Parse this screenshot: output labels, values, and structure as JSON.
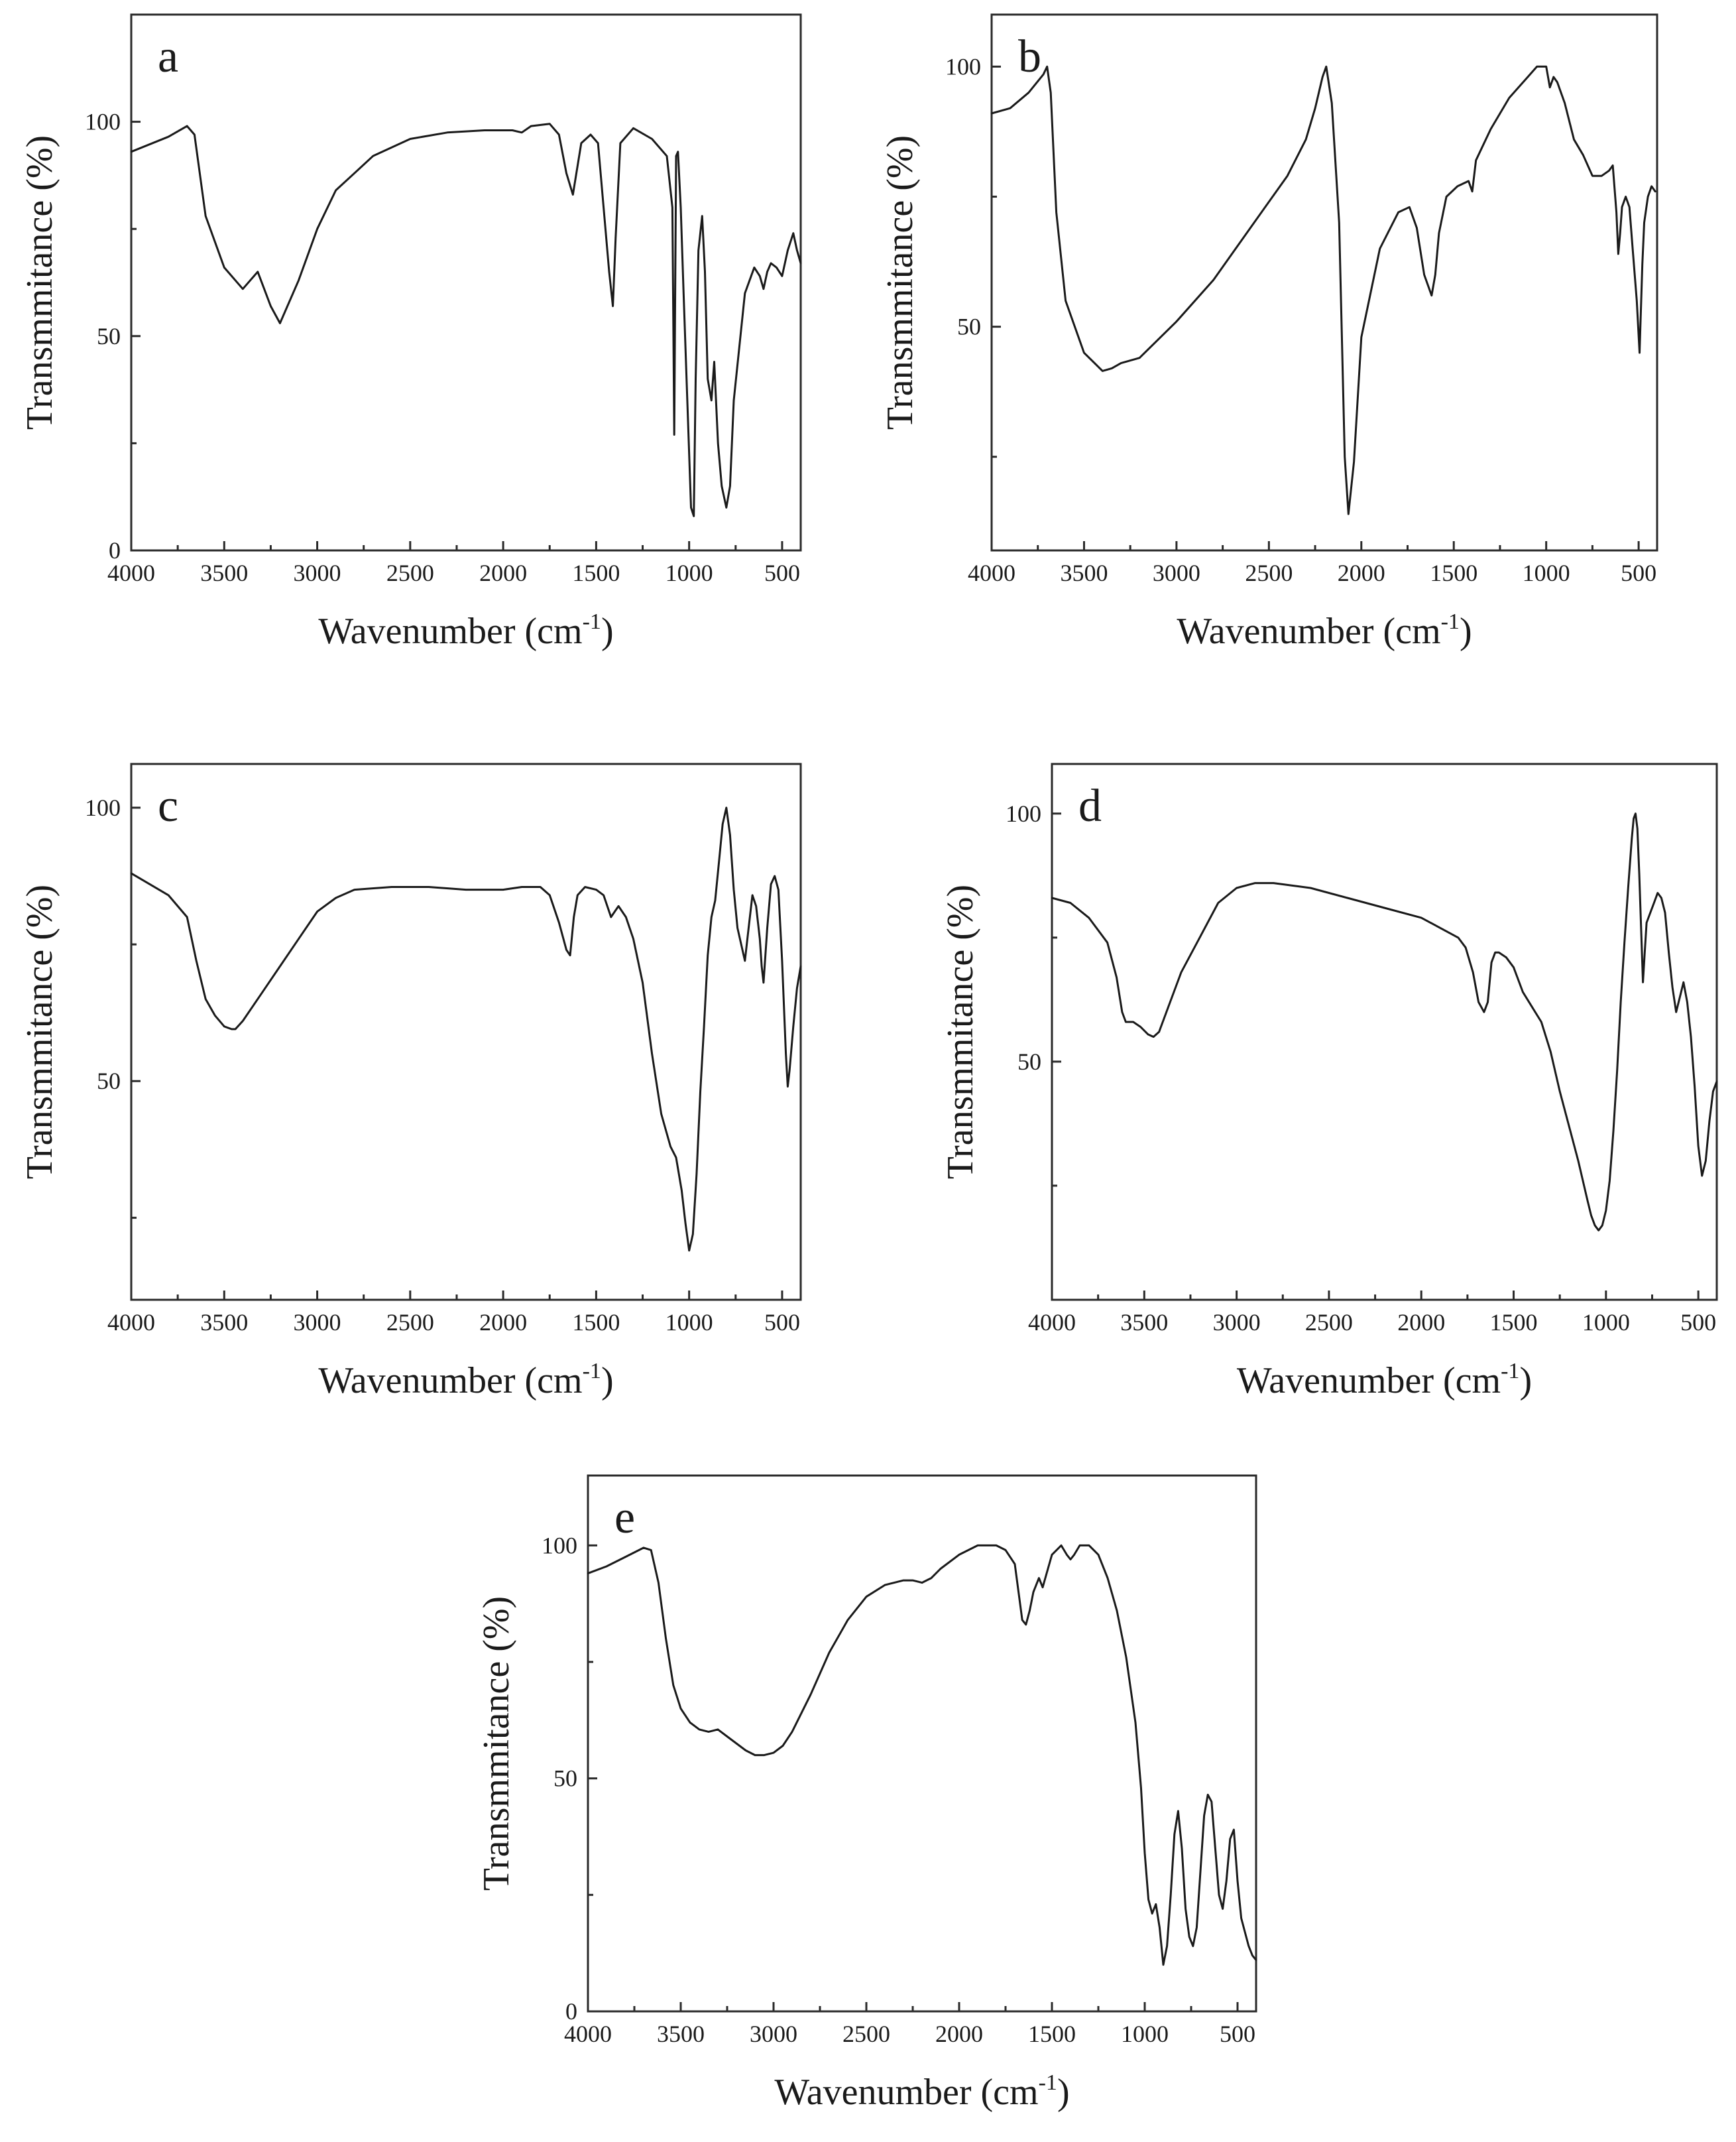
{
  "chart_data": [
    {
      "type": "line",
      "panel_label": "a",
      "xlabel": "Wavenumber (cm",
      "xlabel_sup": "-1",
      "xlabel_suffix": ")",
      "ylabel": "Transmmitance (%)",
      "xlim": [
        4000,
        400
      ],
      "ylim": [
        0,
        125
      ],
      "xticks": [
        4000,
        3500,
        3000,
        2500,
        2000,
        1500,
        1000,
        500
      ],
      "yticks": [
        0,
        50,
        100
      ],
      "series": [
        {
          "name": "a",
          "x": [
            4000,
            3800,
            3700,
            3660,
            3600,
            3500,
            3400,
            3320,
            3250,
            3200,
            3100,
            3000,
            2900,
            2800,
            2700,
            2500,
            2300,
            2100,
            1950,
            1900,
            1850,
            1750,
            1700,
            1660,
            1625,
            1580,
            1530,
            1490,
            1460,
            1430,
            1410,
            1395,
            1370,
            1300,
            1200,
            1120,
            1090,
            1080,
            1075,
            1070,
            1060,
            1045,
            1030,
            1010,
            990,
            975,
            965,
            950,
            930,
            915,
            900,
            880,
            865,
            845,
            825,
            800,
            780,
            760,
            700,
            650,
            620,
            600,
            580,
            560,
            530,
            500,
            470,
            440,
            420,
            400
          ],
          "y": [
            93,
            96.5,
            99,
            97,
            78,
            66,
            61,
            65,
            57,
            53,
            63,
            75,
            84,
            88,
            92,
            96,
            97.5,
            98,
            98,
            97.5,
            99,
            99.5,
            97,
            88,
            83,
            95,
            97,
            95,
            80,
            65,
            57,
            73,
            95,
            98.5,
            96,
            92,
            80,
            27,
            60,
            92,
            93,
            80,
            60,
            35,
            10,
            8,
            40,
            70,
            78,
            65,
            40,
            35,
            44,
            25,
            15,
            10,
            15,
            35,
            60,
            66,
            64,
            61,
            65,
            67,
            66,
            64,
            70,
            74,
            70,
            67
          ]
        }
      ]
    },
    {
      "type": "line",
      "panel_label": "b",
      "xlabel": "Wavenumber (cm",
      "xlabel_sup": "-1",
      "xlabel_suffix": ")",
      "ylabel": "Transmmitance (%)",
      "xlim": [
        4000,
        400
      ],
      "ylim": [
        7,
        110
      ],
      "xticks": [
        4000,
        3500,
        3000,
        2500,
        2000,
        1500,
        1000,
        500
      ],
      "yticks": [
        50,
        100
      ],
      "series": [
        {
          "name": "b",
          "x": [
            4000,
            3900,
            3800,
            3720,
            3700,
            3680,
            3650,
            3600,
            3500,
            3400,
            3350,
            3300,
            3200,
            3000,
            2800,
            2600,
            2400,
            2300,
            2250,
            2210,
            2190,
            2160,
            2120,
            2090,
            2070,
            2040,
            2000,
            1900,
            1800,
            1740,
            1700,
            1660,
            1620,
            1600,
            1580,
            1540,
            1480,
            1420,
            1400,
            1380,
            1300,
            1200,
            1100,
            1050,
            1000,
            980,
            960,
            940,
            920,
            900,
            850,
            800,
            750,
            700,
            660,
            640,
            620,
            610,
            600,
            590,
            570,
            550,
            530,
            510,
            495,
            480,
            470,
            450,
            430,
            410
          ],
          "y": [
            91,
            92,
            95,
            98.5,
            100,
            95,
            72,
            55,
            45,
            41.5,
            42,
            43,
            44,
            51,
            59,
            69,
            79,
            86,
            92,
            98,
            100,
            93,
            70,
            25,
            14,
            24,
            48,
            65,
            72,
            73,
            69,
            60,
            56,
            60,
            68,
            75,
            77,
            78,
            76,
            82,
            88,
            94,
            98,
            100,
            100,
            96,
            98,
            97,
            95,
            93,
            86,
            83,
            79,
            79,
            80,
            81,
            72,
            64,
            68,
            73,
            75,
            73,
            64,
            55,
            45,
            62,
            70,
            75,
            77,
            76
          ]
        }
      ]
    },
    {
      "type": "line",
      "panel_label": "c",
      "xlabel": "Wavenumber (cm",
      "xlabel_sup": "-1",
      "xlabel_suffix": ")",
      "ylabel": "Transmmitance (%)",
      "xlim": [
        4000,
        400
      ],
      "ylim": [
        10,
        108
      ],
      "xticks": [
        4000,
        3500,
        3000,
        2500,
        2000,
        1500,
        1000,
        500
      ],
      "yticks": [
        50,
        100
      ],
      "series": [
        {
          "name": "c",
          "x": [
            4000,
            3900,
            3800,
            3700,
            3650,
            3600,
            3550,
            3500,
            3460,
            3440,
            3400,
            3300,
            3200,
            3100,
            3000,
            2900,
            2800,
            2600,
            2400,
            2200,
            2000,
            1900,
            1800,
            1750,
            1700,
            1660,
            1640,
            1620,
            1600,
            1560,
            1500,
            1460,
            1420,
            1400,
            1380,
            1340,
            1300,
            1250,
            1200,
            1150,
            1100,
            1070,
            1040,
            1020,
            1000,
            980,
            960,
            940,
            920,
            900,
            880,
            860,
            840,
            820,
            800,
            780,
            760,
            740,
            720,
            700,
            680,
            660,
            640,
            620,
            610,
            600,
            580,
            560,
            540,
            520,
            500,
            480,
            470,
            460,
            440,
            420,
            400
          ],
          "y": [
            88,
            86,
            84,
            80,
            72,
            65,
            62,
            60,
            59.5,
            59.5,
            61,
            66,
            71,
            76,
            81,
            83.5,
            85,
            85.5,
            85.5,
            85,
            85,
            85.5,
            85.5,
            84,
            79,
            74,
            73,
            80,
            84,
            85.5,
            85,
            84,
            80,
            81,
            82,
            80,
            76,
            68,
            55,
            44,
            38,
            36,
            30,
            24,
            19,
            22,
            33,
            48,
            60,
            73,
            80,
            83,
            90,
            97,
            100,
            95,
            85,
            78,
            75,
            72,
            78,
            84,
            82,
            76,
            71,
            68,
            78,
            86,
            87.5,
            85,
            72,
            55,
            49,
            52,
            60,
            67,
            71
          ]
        }
      ]
    },
    {
      "type": "line",
      "panel_label": "d",
      "xlabel": "Wavenumber (cm",
      "xlabel_sup": "-1",
      "xlabel_suffix": ")",
      "ylabel": "Transmmitance (%)",
      "xlim": [
        4000,
        400
      ],
      "ylim": [
        2,
        110
      ],
      "xticks": [
        4000,
        3500,
        3000,
        2500,
        2000,
        1500,
        1000,
        500
      ],
      "yticks": [
        50,
        100
      ],
      "series": [
        {
          "name": "d",
          "x": [
            4000,
            3900,
            3800,
            3700,
            3650,
            3620,
            3600,
            3560,
            3520,
            3480,
            3450,
            3420,
            3380,
            3300,
            3200,
            3100,
            3000,
            2900,
            2800,
            2600,
            2400,
            2200,
            2000,
            1900,
            1800,
            1760,
            1720,
            1690,
            1660,
            1640,
            1620,
            1600,
            1580,
            1540,
            1500,
            1450,
            1400,
            1350,
            1300,
            1250,
            1200,
            1150,
            1100,
            1080,
            1060,
            1040,
            1020,
            1000,
            980,
            960,
            940,
            920,
            900,
            880,
            860,
            850,
            840,
            830,
            820,
            800,
            790,
            780,
            760,
            740,
            720,
            700,
            680,
            660,
            640,
            620,
            600,
            580,
            560,
            540,
            520,
            500,
            480,
            460,
            440,
            420,
            400
          ],
          "y": [
            83,
            82,
            79,
            74,
            67,
            60,
            58,
            58,
            57,
            55.5,
            55,
            56,
            60,
            68,
            75,
            82,
            85,
            86,
            86,
            85,
            83,
            81,
            79,
            77,
            75,
            73,
            68,
            62,
            60,
            62,
            70,
            72,
            72,
            71,
            69,
            64,
            61,
            58,
            52,
            44,
            37,
            30,
            22,
            19,
            17,
            16,
            17,
            20,
            26,
            36,
            48,
            62,
            74,
            85,
            95,
            99,
            100,
            97,
            88,
            66,
            72,
            78,
            80,
            82,
            84,
            83,
            80,
            72,
            65,
            60,
            63,
            66,
            62,
            55,
            45,
            33,
            27,
            30,
            38,
            44,
            46
          ]
        }
      ]
    },
    {
      "type": "line",
      "panel_label": "e",
      "xlabel": "Wavenumber (cm",
      "xlabel_sup": "-1",
      "xlabel_suffix": ")",
      "ylabel": "Transmmitance (%)",
      "xlim": [
        4000,
        400
      ],
      "ylim": [
        0,
        115
      ],
      "xticks": [
        4000,
        3500,
        3000,
        2500,
        2000,
        1500,
        1000,
        500
      ],
      "yticks": [
        0,
        50,
        100
      ],
      "series": [
        {
          "name": "e",
          "x": [
            4000,
            3900,
            3800,
            3700,
            3660,
            3620,
            3580,
            3540,
            3500,
            3450,
            3400,
            3350,
            3300,
            3250,
            3200,
            3150,
            3100,
            3050,
            3000,
            2950,
            2900,
            2800,
            2700,
            2600,
            2500,
            2400,
            2300,
            2250,
            2200,
            2150,
            2100,
            2000,
            1900,
            1800,
            1750,
            1700,
            1680,
            1660,
            1640,
            1620,
            1600,
            1570,
            1550,
            1500,
            1450,
            1420,
            1400,
            1380,
            1350,
            1300,
            1250,
            1200,
            1150,
            1100,
            1050,
            1020,
            1000,
            980,
            960,
            940,
            920,
            900,
            880,
            860,
            840,
            820,
            800,
            780,
            760,
            740,
            720,
            700,
            680,
            660,
            640,
            620,
            600,
            580,
            560,
            540,
            520,
            500,
            480,
            460,
            440,
            420,
            400
          ],
          "y": [
            94,
            95.5,
            97.5,
            99.5,
            99,
            92,
            80,
            70,
            65,
            62,
            60.5,
            60,
            60.5,
            59,
            57.5,
            56,
            55,
            55,
            55.5,
            57,
            60,
            68,
            77,
            84,
            89,
            91.5,
            92.5,
            92.5,
            92,
            93,
            95,
            98,
            100,
            100,
            99,
            96,
            90,
            84,
            83,
            86,
            90,
            93,
            91,
            98,
            100,
            98,
            97,
            98,
            100,
            100,
            98,
            93,
            86,
            76,
            62,
            48,
            34,
            24,
            21,
            23,
            18,
            10,
            14,
            25,
            38,
            43,
            35,
            22,
            16,
            14,
            18,
            30,
            42,
            46.5,
            45,
            35,
            25,
            22,
            28,
            37,
            39,
            28,
            20,
            17,
            14,
            12,
            11
          ]
        }
      ]
    }
  ]
}
